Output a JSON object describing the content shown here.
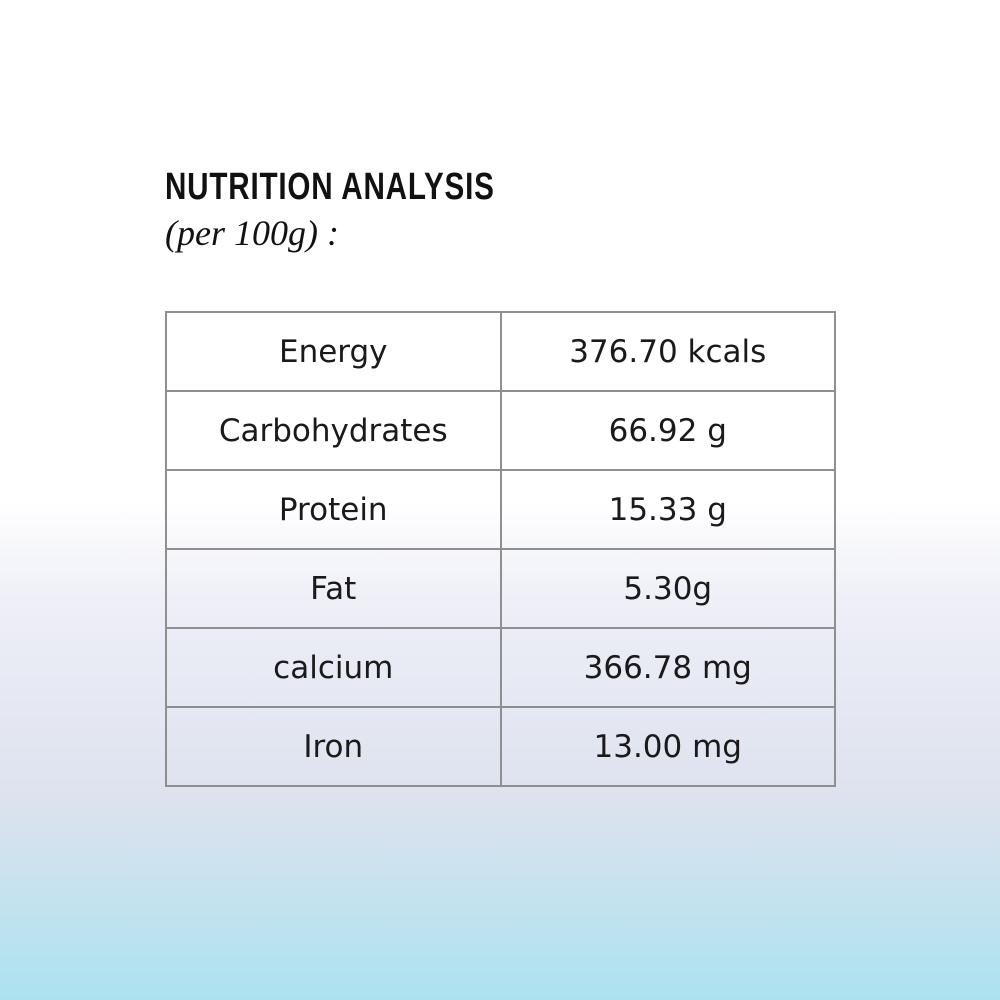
{
  "header": {
    "title": "NUTRITION ANALYSIS",
    "subtitle": "(per 100g) :"
  },
  "table": {
    "rows": [
      [
        "Energy",
        "376.70 kcals"
      ],
      [
        "Carbohydrates",
        "66.92 g"
      ],
      [
        "Protein",
        "15.33 g"
      ],
      [
        "Fat",
        "5.30g"
      ],
      [
        "calcium",
        "366.78 mg"
      ],
      [
        "Iron",
        "13.00 mg"
      ]
    ]
  }
}
